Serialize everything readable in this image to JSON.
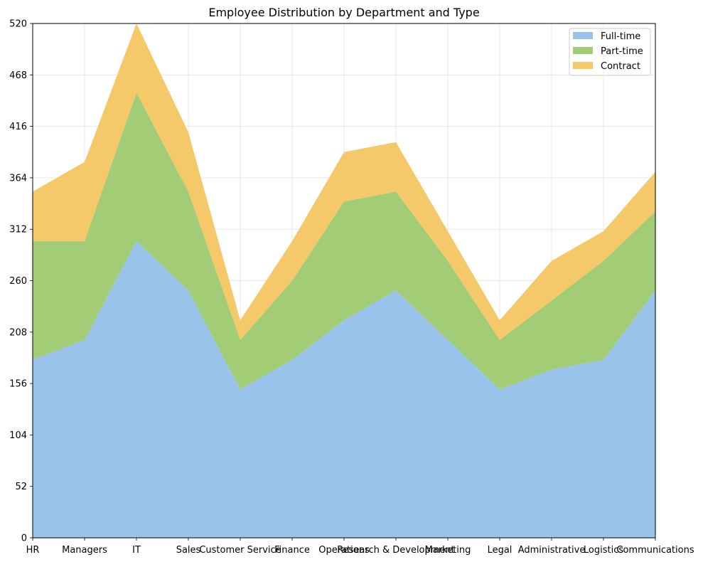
{
  "chart_data": {
    "type": "area",
    "stacked": true,
    "title": "Employee Distribution by Department and Type",
    "xlabel": "",
    "ylabel": "",
    "categories": [
      "HR",
      "Managers",
      "IT",
      "Sales",
      "Customer Service",
      "Finance",
      "Operations",
      "Research & Development",
      "Marketing",
      "Legal",
      "Administrative",
      "Logistics",
      "Communications"
    ],
    "series": [
      {
        "name": "Full-time",
        "color": "#99c3ea",
        "values": [
          180,
          200,
          300,
          250,
          150,
          180,
          220,
          250,
          200,
          150,
          170,
          180,
          250
        ]
      },
      {
        "name": "Part-time",
        "color": "#a3cc76",
        "values": [
          120,
          100,
          150,
          100,
          50,
          80,
          120,
          100,
          80,
          50,
          70,
          100,
          80
        ]
      },
      {
        "name": "Contract",
        "color": "#f5c86a",
        "values": [
          50,
          80,
          70,
          60,
          20,
          40,
          50,
          50,
          30,
          20,
          40,
          30,
          40
        ]
      }
    ],
    "ylim": [
      0,
      520
    ],
    "yticks": [
      "0",
      "52",
      "104",
      "156",
      "208",
      "260",
      "312",
      "364",
      "416",
      "468",
      "520"
    ],
    "grid": true,
    "legend_position": "top-right"
  }
}
